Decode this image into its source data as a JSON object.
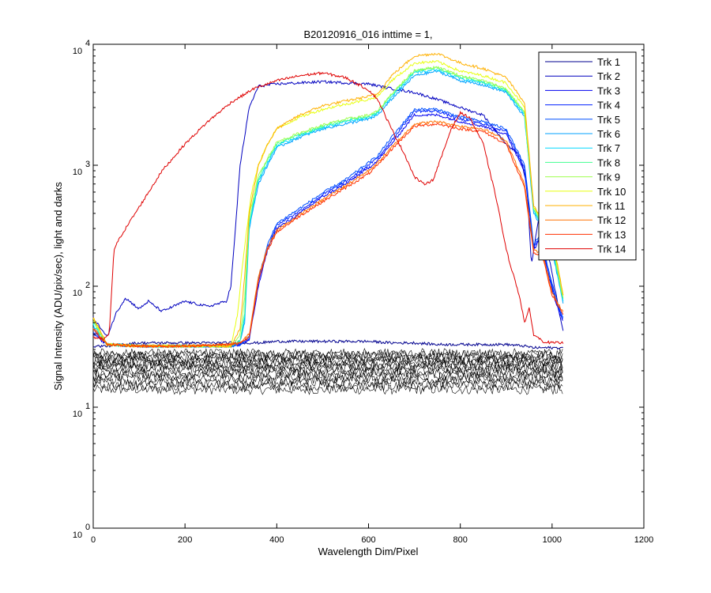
{
  "chart_data": {
    "type": "line",
    "title": "B20120916_016 inttime = 1,",
    "xlabel": "Wavelength Dim/Pixel",
    "ylabel": "Signal Intensity (ADU/pix/sec), light and darks",
    "xlim": [
      0,
      1200
    ],
    "ylim": [
      1,
      10000
    ],
    "y_scale": "log",
    "grid": false,
    "legend_position": "top-right",
    "x_ticks": [
      "0",
      "200",
      "400",
      "600",
      "800",
      "1000",
      "1200"
    ],
    "y_ticks": [
      {
        "base": "10",
        "exp": "0",
        "value": 1
      },
      {
        "base": "10",
        "exp": "1",
        "value": 10
      },
      {
        "base": "10",
        "exp": "2",
        "value": 100
      },
      {
        "base": "10",
        "exp": "3",
        "value": 1000
      },
      {
        "base": "10",
        "exp": "4",
        "value": 10000
      }
    ],
    "series": [
      {
        "name": "Trk 1",
        "color": "#00008f",
        "x": [
          0,
          30,
          60,
          100,
          140,
          180,
          220,
          260,
          300,
          320,
          340,
          360,
          400,
          500,
          600,
          650,
          680,
          700,
          750,
          800,
          850,
          900,
          940,
          960,
          980,
          1000,
          1015,
          1025
        ],
        "y": [
          32,
          32,
          33,
          34,
          34,
          34,
          34,
          34,
          34,
          34,
          34,
          34,
          35,
          35,
          35,
          34,
          34,
          34,
          33,
          33,
          33,
          33,
          32,
          31,
          31,
          31,
          31,
          31
        ]
      },
      {
        "name": "Trk 2",
        "color": "#0000bf",
        "x": [
          0,
          30,
          50,
          70,
          100,
          120,
          150,
          200,
          250,
          290,
          300,
          310,
          320,
          340,
          360,
          400,
          450,
          500,
          550,
          600,
          650,
          700,
          750,
          800,
          850,
          900,
          930,
          945,
          955,
          970,
          990,
          1010,
          1020,
          1025
        ],
        "y": [
          55,
          38,
          60,
          80,
          65,
          75,
          62,
          75,
          68,
          75,
          100,
          300,
          1000,
          3000,
          4500,
          4700,
          4800,
          4900,
          4800,
          4700,
          4300,
          4000,
          3500,
          3000,
          2600,
          1500,
          1200,
          700,
          150,
          350,
          200,
          80,
          50,
          40
        ]
      },
      {
        "name": "Trk 3",
        "color": "#0000ef",
        "x": [
          0,
          30,
          100,
          200,
          300,
          320,
          340,
          360,
          380,
          400,
          450,
          500,
          550,
          600,
          620,
          650,
          700,
          750,
          800,
          850,
          900,
          940,
          960,
          975,
          990,
          1010,
          1025
        ],
        "y": [
          40,
          33,
          32,
          32,
          32,
          33,
          36,
          100,
          200,
          300,
          400,
          550,
          700,
          950,
          1100,
          1500,
          2600,
          2600,
          2300,
          2100,
          1800,
          900,
          200,
          250,
          130,
          70,
          50
        ]
      },
      {
        "name": "Trk 4",
        "color": "#0020ff",
        "x": [
          0,
          30,
          100,
          200,
          300,
          320,
          340,
          360,
          380,
          400,
          450,
          500,
          550,
          600,
          620,
          650,
          700,
          750,
          800,
          850,
          900,
          940,
          960,
          975,
          990,
          1010,
          1025
        ],
        "y": [
          42,
          33,
          32,
          32,
          32,
          33,
          37,
          110,
          210,
          320,
          420,
          570,
          730,
          1000,
          1150,
          1600,
          2800,
          2800,
          2400,
          2200,
          1900,
          950,
          210,
          260,
          140,
          72,
          52
        ]
      },
      {
        "name": "Trk 5",
        "color": "#0050ff",
        "x": [
          0,
          30,
          100,
          200,
          300,
          320,
          340,
          360,
          380,
          400,
          450,
          500,
          550,
          600,
          620,
          650,
          700,
          750,
          800,
          850,
          900,
          940,
          960,
          975,
          990,
          1010,
          1025
        ],
        "y": [
          44,
          33,
          32,
          32,
          32,
          33,
          38,
          115,
          220,
          330,
          440,
          590,
          760,
          1050,
          1200,
          1700,
          2900,
          2900,
          2500,
          2300,
          2000,
          1000,
          220,
          270,
          150,
          75,
          54
        ]
      },
      {
        "name": "Trk 6",
        "color": "#00a0ff",
        "x": [
          0,
          30,
          100,
          200,
          300,
          320,
          330,
          340,
          360,
          380,
          400,
          450,
          500,
          550,
          600,
          620,
          650,
          700,
          750,
          800,
          850,
          900,
          940,
          960,
          980,
          1000,
          1025
        ],
        "y": [
          46,
          33,
          32,
          32,
          32,
          35,
          50,
          300,
          700,
          1000,
          1400,
          1700,
          2000,
          2200,
          2400,
          2600,
          3500,
          5500,
          6000,
          5000,
          4600,
          4000,
          2500,
          400,
          300,
          200,
          70
        ]
      },
      {
        "name": "Trk 7",
        "color": "#00d8ff",
        "x": [
          0,
          30,
          100,
          200,
          300,
          320,
          330,
          340,
          360,
          380,
          400,
          450,
          500,
          550,
          600,
          620,
          650,
          700,
          750,
          800,
          850,
          900,
          940,
          960,
          980,
          1000,
          1025
        ],
        "y": [
          48,
          33,
          32,
          32,
          32,
          35,
          55,
          320,
          750,
          1050,
          1450,
          1750,
          2050,
          2300,
          2500,
          2700,
          3700,
          5800,
          6200,
          5200,
          4800,
          4100,
          2600,
          420,
          310,
          210,
          72
        ]
      },
      {
        "name": "Trk 8",
        "color": "#40ff90",
        "x": [
          0,
          30,
          100,
          200,
          300,
          320,
          330,
          340,
          360,
          380,
          400,
          450,
          500,
          550,
          600,
          620,
          650,
          700,
          750,
          800,
          850,
          900,
          940,
          960,
          980,
          1000,
          1025
        ],
        "y": [
          50,
          33,
          32,
          32,
          32,
          36,
          60,
          340,
          780,
          1100,
          1500,
          1800,
          2100,
          2350,
          2550,
          2750,
          3800,
          6000,
          6400,
          5400,
          4900,
          4200,
          2700,
          430,
          320,
          220,
          74
        ]
      },
      {
        "name": "Trk 9",
        "color": "#a0ff50",
        "x": [
          0,
          30,
          100,
          200,
          300,
          320,
          330,
          340,
          360,
          380,
          400,
          450,
          500,
          550,
          600,
          620,
          650,
          700,
          750,
          800,
          850,
          900,
          940,
          960,
          980,
          1000,
          1025
        ],
        "y": [
          52,
          33,
          32,
          32,
          32,
          40,
          80,
          380,
          820,
          1150,
          1550,
          1850,
          2150,
          2400,
          2600,
          2800,
          3900,
          6100,
          6500,
          5500,
          5000,
          4300,
          2750,
          440,
          330,
          230,
          76
        ]
      },
      {
        "name": "Trk 10",
        "color": "#e8ff10",
        "x": [
          0,
          30,
          100,
          200,
          300,
          315,
          325,
          335,
          345,
          360,
          380,
          400,
          450,
          500,
          550,
          600,
          620,
          650,
          700,
          750,
          800,
          850,
          900,
          940,
          960,
          980,
          1000,
          1025
        ],
        "y": [
          54,
          33,
          32,
          32,
          32,
          60,
          150,
          300,
          600,
          1000,
          1500,
          2000,
          2500,
          2900,
          3200,
          3500,
          3700,
          5000,
          7000,
          7200,
          6000,
          5500,
          4800,
          3000,
          450,
          350,
          250,
          80
        ]
      },
      {
        "name": "Trk 11",
        "color": "#ffb000",
        "x": [
          0,
          30,
          100,
          200,
          300,
          320,
          330,
          340,
          360,
          380,
          400,
          450,
          500,
          550,
          600,
          620,
          650,
          700,
          750,
          800,
          850,
          900,
          940,
          960,
          980,
          1000,
          1025
        ],
        "y": [
          56,
          33,
          32,
          32,
          32,
          45,
          120,
          400,
          1000,
          1500,
          2000,
          2600,
          3100,
          3400,
          3700,
          3900,
          5500,
          8000,
          8400,
          7000,
          6300,
          5300,
          3300,
          460,
          360,
          260,
          82
        ]
      },
      {
        "name": "Trk 12",
        "color": "#ff7000",
        "x": [
          0,
          30,
          100,
          200,
          300,
          320,
          340,
          360,
          380,
          400,
          450,
          500,
          550,
          600,
          620,
          650,
          700,
          750,
          800,
          850,
          900,
          940,
          960,
          980,
          1000,
          1025
        ],
        "y": [
          45,
          33,
          32,
          32,
          33,
          34,
          40,
          120,
          210,
          290,
          390,
          520,
          680,
          900,
          1050,
          1400,
          2200,
          2300,
          2100,
          2000,
          1600,
          700,
          200,
          180,
          90,
          60
        ]
      },
      {
        "name": "Trk 13",
        "color": "#ff3000",
        "x": [
          0,
          30,
          100,
          200,
          300,
          320,
          340,
          360,
          380,
          400,
          450,
          500,
          550,
          600,
          620,
          650,
          700,
          750,
          800,
          850,
          900,
          940,
          960,
          980,
          1000,
          1025
        ],
        "y": [
          44,
          33,
          32,
          32,
          33,
          34,
          38,
          110,
          200,
          280,
          380,
          500,
          650,
          850,
          1000,
          1350,
          2100,
          2200,
          2000,
          1900,
          1500,
          650,
          190,
          170,
          85,
          58
        ]
      },
      {
        "name": "Trk 14",
        "color": "#df0000",
        "x": [
          0,
          20,
          35,
          45,
          60,
          100,
          150,
          200,
          250,
          300,
          350,
          400,
          450,
          500,
          550,
          600,
          620,
          650,
          680,
          700,
          720,
          740,
          760,
          780,
          800,
          820,
          850,
          880,
          900,
          930,
          940,
          950,
          960,
          980,
          1000,
          1025
        ],
        "y": [
          38,
          36,
          40,
          200,
          260,
          450,
          900,
          1500,
          2300,
          3300,
          4300,
          5000,
          5500,
          5800,
          5300,
          4200,
          3500,
          2000,
          1200,
          800,
          700,
          750,
          1200,
          2000,
          2700,
          2500,
          1500,
          500,
          200,
          80,
          50,
          65,
          40,
          35,
          34,
          34
        ]
      }
    ],
    "dark_frames": {
      "color": "#000000",
      "x_range": [
        0,
        1025
      ],
      "y_levels": [
        14,
        15,
        16,
        17,
        18,
        19,
        20,
        21,
        22,
        23,
        24,
        25,
        26,
        27,
        28
      ]
    }
  }
}
